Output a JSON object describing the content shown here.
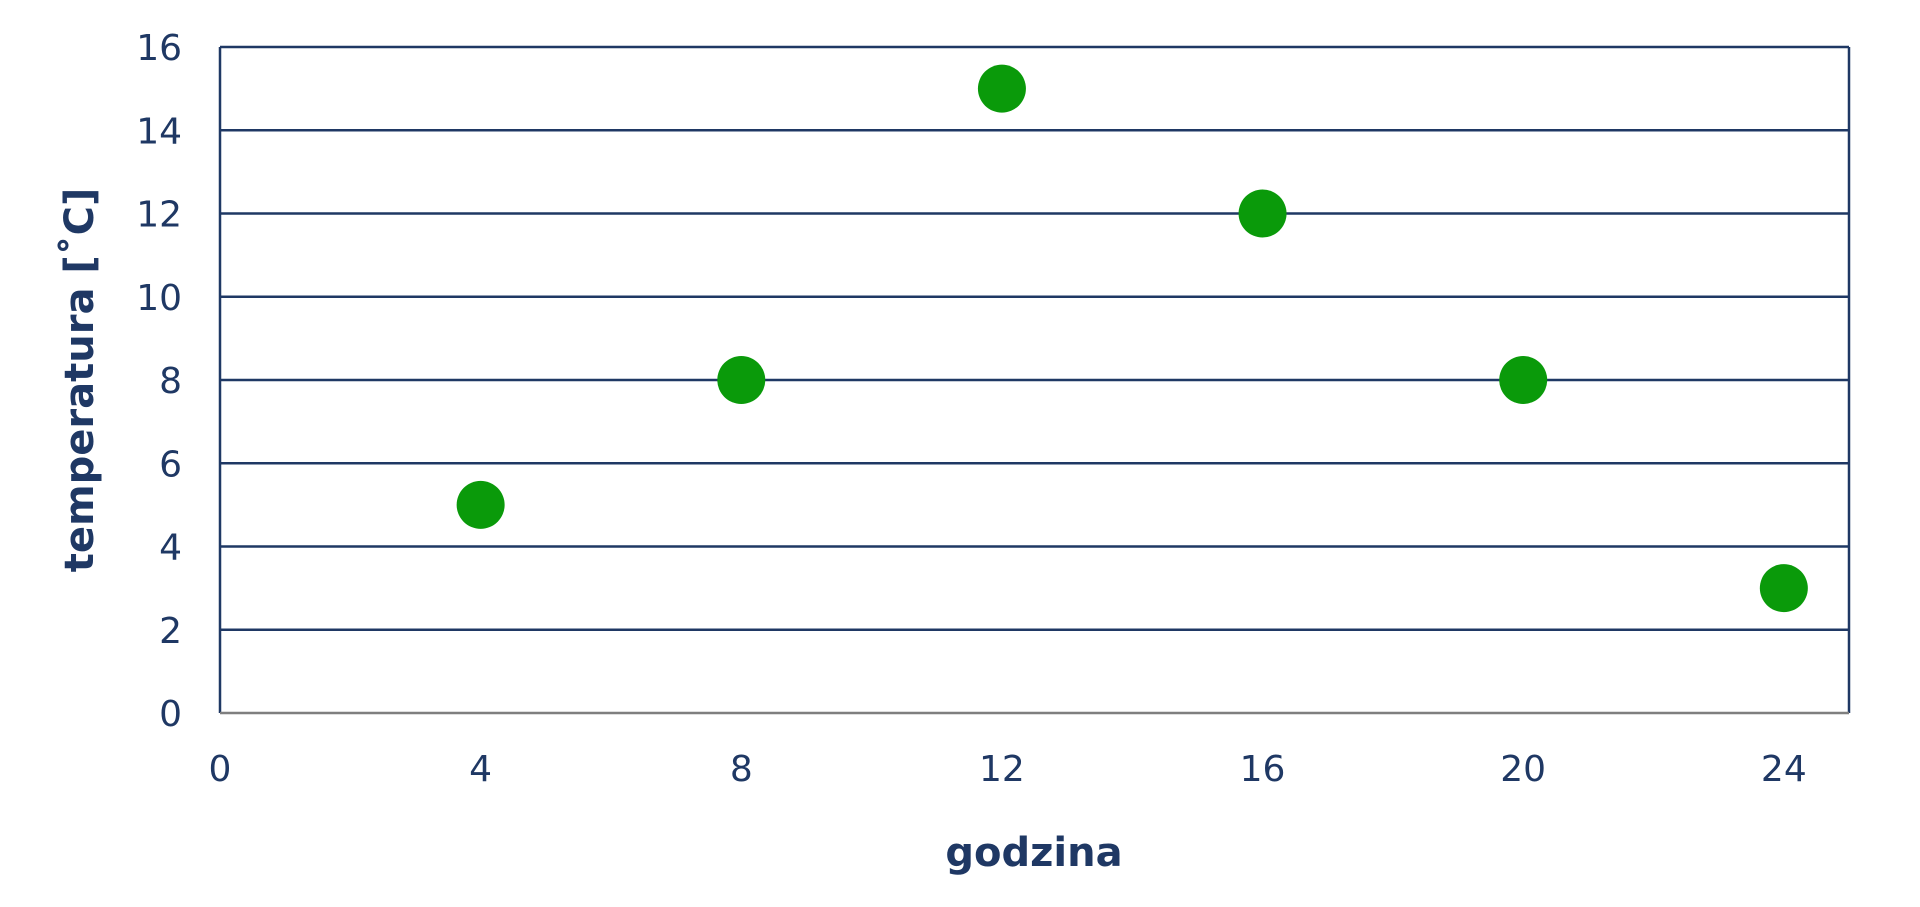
{
  "chart_data": {
    "type": "scatter",
    "xlabel": "godzina",
    "ylabel": "temperatura [˚C]",
    "xlim": [
      0,
      25
    ],
    "ylim": [
      0,
      16
    ],
    "xticks": [
      "0",
      "4",
      "8",
      "12",
      "16",
      "20",
      "24"
    ],
    "yticks": [
      "0",
      "2",
      "4",
      "6",
      "8",
      "10",
      "12",
      "14",
      "16"
    ],
    "grid": "horizontal",
    "legend": "none",
    "series": [
      {
        "x": [
          4,
          8,
          12,
          16,
          20,
          24
        ],
        "y": [
          5,
          8,
          15,
          12,
          8,
          3
        ]
      }
    ],
    "colors": {
      "axis": "#1f3864",
      "grid": "#1f3864",
      "text": "#1f3864",
      "marker": "#0a9a0a",
      "baseline": "#7f7f7f"
    }
  }
}
